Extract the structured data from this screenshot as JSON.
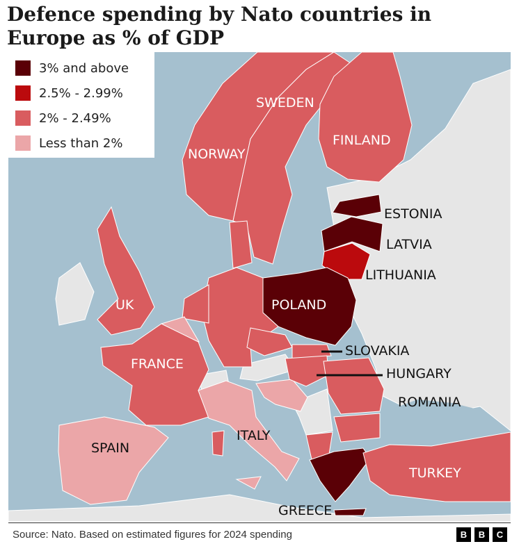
{
  "title": "Defence spending by Nato countries in Europe as % of GDP",
  "colors": {
    "sea": "#a5c0cf",
    "non_nato": "#e6e6e6",
    "c3plus": "#5a0006",
    "c25": "#bb0a0d",
    "c20": "#d95c5f",
    "cless2": "#eba6a8"
  },
  "legend": [
    {
      "label": "3% and above",
      "color": "#5a0006"
    },
    {
      "label": "2.5% - 2.99%",
      "color": "#bb0a0d"
    },
    {
      "label": "2% - 2.49%",
      "color": "#d95c5f"
    },
    {
      "label": "Less than 2%",
      "color": "#eba6a8"
    }
  ],
  "labels": {
    "sweden": "SWEDEN",
    "norway": "NORWAY",
    "finland": "FINLAND",
    "estonia": "ESTONIA",
    "latvia": "LATVIA",
    "lithuania": "LITHUANIA",
    "poland": "POLAND",
    "uk": "UK",
    "france": "FRANCE",
    "slovakia": "SLOVAKIA",
    "hungary": "HUNGARY",
    "romania": "ROMANIA",
    "spain": "SPAIN",
    "italy": "ITALY",
    "turkey": "TURKEY",
    "greece": "GREECE"
  },
  "source": "Source: Nato. Based on estimated figures for 2024 spending",
  "logo": [
    "B",
    "B",
    "C"
  ]
}
